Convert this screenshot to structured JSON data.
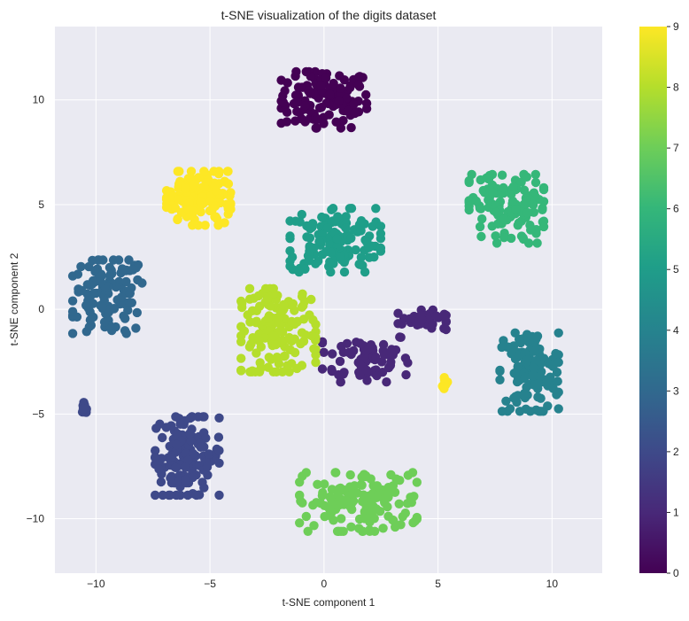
{
  "chart_data": {
    "type": "scatter",
    "title": "t-SNE visualization of the digits dataset",
    "xlabel": "t-SNE component 1",
    "ylabel": "t-SNE component 2",
    "xlim": [
      -11.8,
      12.2
    ],
    "ylim": [
      -12.6,
      13.5
    ],
    "xticks": [
      -10,
      -5,
      0,
      5,
      10
    ],
    "yticks": [
      -10,
      -5,
      0,
      5,
      10
    ],
    "grid": true,
    "colormap": "viridis",
    "colorbar": {
      "range": [
        0,
        9
      ],
      "ticks": [
        0,
        1,
        2,
        3,
        4,
        5,
        6,
        7,
        8,
        9
      ]
    },
    "clusters": [
      {
        "label": 0,
        "center": [
          0.0,
          10.0
        ],
        "spread": [
          1.6,
          1.15
        ],
        "count": 120
      },
      {
        "label": 1,
        "center": [
          1.8,
          -2.3
        ],
        "spread": [
          1.6,
          1.0
        ],
        "count": 70
      },
      {
        "label": 1,
        "center": [
          4.3,
          -0.5
        ],
        "spread": [
          0.9,
          0.4
        ],
        "count": 35
      },
      {
        "label": 2,
        "center": [
          -6.0,
          -7.0
        ],
        "spread": [
          1.2,
          1.6
        ],
        "count": 140
      },
      {
        "label": 2,
        "center": [
          -10.5,
          -4.8
        ],
        "spread": [
          0.12,
          0.3
        ],
        "count": 10
      },
      {
        "label": 3,
        "center": [
          -9.5,
          0.6
        ],
        "spread": [
          1.3,
          1.5
        ],
        "count": 120
      },
      {
        "label": 4,
        "center": [
          9.0,
          -3.0
        ],
        "spread": [
          1.1,
          1.6
        ],
        "count": 130
      },
      {
        "label": 5,
        "center": [
          0.5,
          3.3
        ],
        "spread": [
          1.7,
          1.3
        ],
        "count": 140
      },
      {
        "label": 6,
        "center": [
          8.0,
          4.8
        ],
        "spread": [
          1.4,
          1.4
        ],
        "count": 130
      },
      {
        "label": 7,
        "center": [
          1.5,
          -9.2
        ],
        "spread": [
          2.2,
          1.2
        ],
        "count": 140
      },
      {
        "label": 8,
        "center": [
          -2.0,
          -1.0
        ],
        "spread": [
          1.4,
          1.7
        ],
        "count": 150
      },
      {
        "label": 9,
        "center": [
          -5.5,
          5.3
        ],
        "spread": [
          1.2,
          1.1
        ],
        "count": 150
      },
      {
        "label": 9,
        "center": [
          5.3,
          -3.6
        ],
        "spread": [
          0.12,
          0.4
        ],
        "count": 10
      }
    ]
  }
}
